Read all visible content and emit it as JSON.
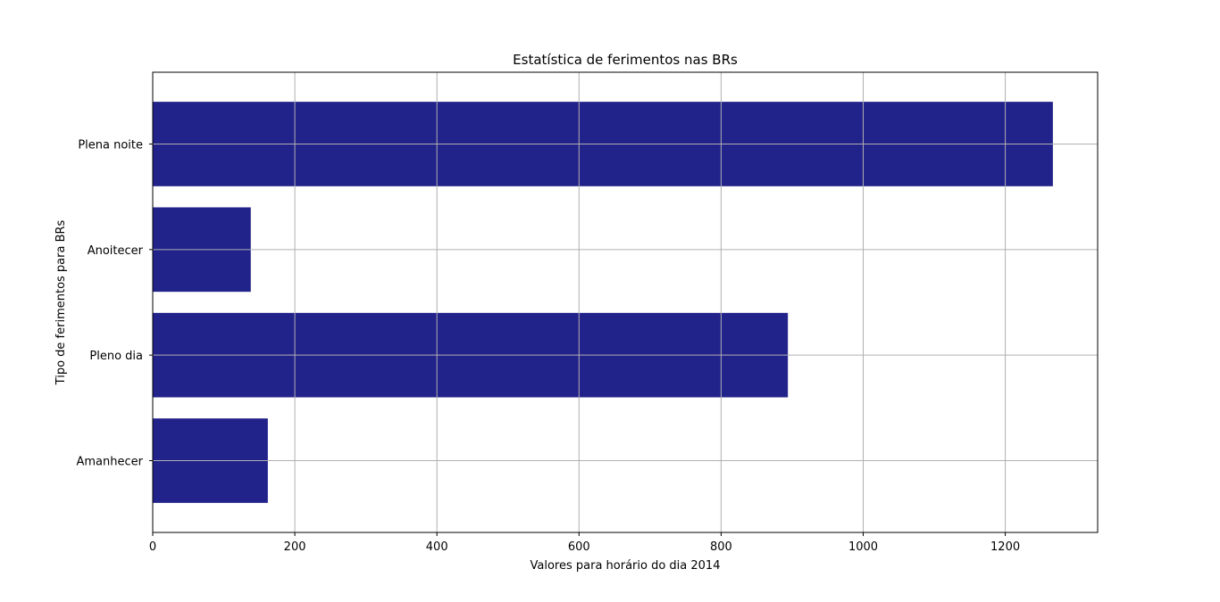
{
  "chart_data": {
    "type": "bar",
    "orientation": "horizontal",
    "title": "Estatística de ferimentos nas BRs",
    "xlabel": "Valores para horário do dia 2014",
    "ylabel": "Tipo de ferimentos para BRs",
    "categories": [
      "Amanhecer",
      "Pleno dia",
      "Anoitecer",
      "Plena noite"
    ],
    "series": [
      {
        "values": [
          162,
          894,
          138,
          1267
        ]
      }
    ],
    "xlim": [
      0,
      1330
    ],
    "xticks": [
      "0",
      "200",
      "400",
      "600",
      "800",
      "1000",
      "1200"
    ],
    "grid": true,
    "bar_color": "#22228b",
    "grid_color": "#b0b0b0"
  }
}
